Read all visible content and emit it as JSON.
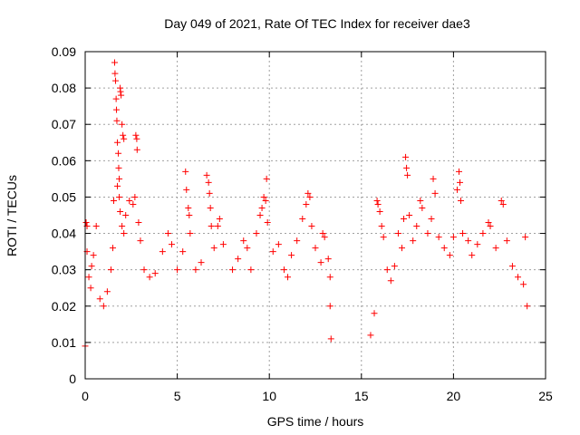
{
  "chart_data": {
    "type": "scatter",
    "title": "Day 049 of 2021, Rate Of TEC Index for receiver dae3",
    "xlabel": "GPS time / hours",
    "ylabel": "ROTI / TECUs",
    "xlim": [
      0,
      25
    ],
    "ylim": [
      0,
      0.09
    ],
    "x_ticks": [
      "0",
      "5",
      "10",
      "15",
      "20",
      "25"
    ],
    "y_ticks": [
      "0",
      "0.01",
      "0.02",
      "0.03",
      "0.04",
      "0.05",
      "0.06",
      "0.07",
      "0.08",
      "0.09"
    ],
    "grid": true,
    "legend": false,
    "marker": "+",
    "color": "#ff0000",
    "series": [
      {
        "points": [
          [
            0.0,
            0.009
          ],
          [
            0.05,
            0.043
          ],
          [
            0.1,
            0.042
          ],
          [
            0.1,
            0.035
          ],
          [
            0.2,
            0.028
          ],
          [
            0.3,
            0.025
          ],
          [
            0.35,
            0.031
          ],
          [
            0.45,
            0.034
          ],
          [
            0.6,
            0.042
          ],
          [
            0.8,
            0.022
          ],
          [
            1.0,
            0.02
          ],
          [
            1.2,
            0.024
          ],
          [
            1.4,
            0.03
          ],
          [
            1.5,
            0.036
          ],
          [
            1.55,
            0.049
          ],
          [
            1.6,
            0.087
          ],
          [
            1.62,
            0.084
          ],
          [
            1.65,
            0.082
          ],
          [
            1.68,
            0.077
          ],
          [
            1.7,
            0.074
          ],
          [
            1.72,
            0.071
          ],
          [
            1.75,
            0.065
          ],
          [
            1.8,
            0.062
          ],
          [
            1.82,
            0.058
          ],
          [
            1.85,
            0.055
          ],
          [
            1.9,
            0.08
          ],
          [
            1.92,
            0.079
          ],
          [
            1.95,
            0.078
          ],
          [
            2.0,
            0.07
          ],
          [
            2.05,
            0.067
          ],
          [
            2.1,
            0.066
          ],
          [
            1.75,
            0.053
          ],
          [
            1.85,
            0.05
          ],
          [
            1.9,
            0.046
          ],
          [
            2.0,
            0.042
          ],
          [
            2.1,
            0.04
          ],
          [
            2.2,
            0.045
          ],
          [
            2.4,
            0.049
          ],
          [
            2.6,
            0.048
          ],
          [
            2.7,
            0.05
          ],
          [
            2.75,
            0.067
          ],
          [
            2.8,
            0.066
          ],
          [
            2.82,
            0.063
          ],
          [
            2.9,
            0.043
          ],
          [
            3.0,
            0.038
          ],
          [
            3.2,
            0.03
          ],
          [
            3.5,
            0.028
          ],
          [
            3.8,
            0.029
          ],
          [
            4.2,
            0.035
          ],
          [
            4.5,
            0.04
          ],
          [
            4.7,
            0.037
          ],
          [
            5.0,
            0.03
          ],
          [
            5.3,
            0.035
          ],
          [
            5.45,
            0.057
          ],
          [
            5.5,
            0.052
          ],
          [
            5.6,
            0.047
          ],
          [
            5.65,
            0.045
          ],
          [
            5.7,
            0.04
          ],
          [
            6.0,
            0.03
          ],
          [
            6.3,
            0.032
          ],
          [
            6.6,
            0.056
          ],
          [
            6.7,
            0.054
          ],
          [
            6.75,
            0.051
          ],
          [
            6.8,
            0.047
          ],
          [
            6.85,
            0.042
          ],
          [
            7.0,
            0.036
          ],
          [
            7.2,
            0.042
          ],
          [
            7.3,
            0.044
          ],
          [
            7.5,
            0.037
          ],
          [
            8.0,
            0.03
          ],
          [
            8.3,
            0.033
          ],
          [
            8.6,
            0.038
          ],
          [
            8.8,
            0.036
          ],
          [
            9.0,
            0.03
          ],
          [
            9.3,
            0.04
          ],
          [
            9.5,
            0.045
          ],
          [
            9.6,
            0.047
          ],
          [
            9.7,
            0.05
          ],
          [
            9.8,
            0.049
          ],
          [
            9.85,
            0.055
          ],
          [
            9.9,
            0.043
          ],
          [
            10.2,
            0.035
          ],
          [
            10.5,
            0.037
          ],
          [
            10.8,
            0.03
          ],
          [
            11.0,
            0.028
          ],
          [
            11.2,
            0.034
          ],
          [
            11.5,
            0.038
          ],
          [
            11.8,
            0.044
          ],
          [
            12.0,
            0.048
          ],
          [
            12.1,
            0.051
          ],
          [
            12.2,
            0.05
          ],
          [
            12.3,
            0.042
          ],
          [
            12.5,
            0.036
          ],
          [
            12.8,
            0.032
          ],
          [
            12.9,
            0.04
          ],
          [
            13.0,
            0.039
          ],
          [
            13.2,
            0.033
          ],
          [
            13.3,
            0.028
          ],
          [
            13.3,
            0.02
          ],
          [
            13.35,
            0.011
          ],
          [
            15.5,
            0.012
          ],
          [
            15.7,
            0.018
          ],
          [
            15.85,
            0.049
          ],
          [
            15.9,
            0.048
          ],
          [
            16.0,
            0.046
          ],
          [
            16.1,
            0.042
          ],
          [
            16.2,
            0.039
          ],
          [
            16.4,
            0.03
          ],
          [
            16.6,
            0.027
          ],
          [
            16.8,
            0.031
          ],
          [
            17.0,
            0.04
          ],
          [
            17.2,
            0.036
          ],
          [
            17.3,
            0.044
          ],
          [
            17.4,
            0.061
          ],
          [
            17.45,
            0.058
          ],
          [
            17.5,
            0.056
          ],
          [
            17.6,
            0.045
          ],
          [
            17.8,
            0.038
          ],
          [
            18.0,
            0.042
          ],
          [
            18.2,
            0.049
          ],
          [
            18.3,
            0.047
          ],
          [
            18.6,
            0.04
          ],
          [
            18.8,
            0.044
          ],
          [
            18.9,
            0.055
          ],
          [
            19.0,
            0.051
          ],
          [
            19.2,
            0.039
          ],
          [
            19.5,
            0.036
          ],
          [
            19.8,
            0.034
          ],
          [
            20.0,
            0.039
          ],
          [
            20.2,
            0.052
          ],
          [
            20.3,
            0.057
          ],
          [
            20.35,
            0.054
          ],
          [
            20.4,
            0.049
          ],
          [
            20.5,
            0.04
          ],
          [
            20.8,
            0.038
          ],
          [
            21.0,
            0.034
          ],
          [
            21.3,
            0.037
          ],
          [
            21.6,
            0.04
          ],
          [
            21.9,
            0.043
          ],
          [
            22.0,
            0.042
          ],
          [
            22.3,
            0.036
          ],
          [
            22.6,
            0.049
          ],
          [
            22.7,
            0.048
          ],
          [
            22.9,
            0.038
          ],
          [
            23.2,
            0.031
          ],
          [
            23.5,
            0.028
          ],
          [
            23.8,
            0.026
          ],
          [
            23.9,
            0.039
          ],
          [
            24.0,
            0.02
          ]
        ]
      }
    ]
  }
}
